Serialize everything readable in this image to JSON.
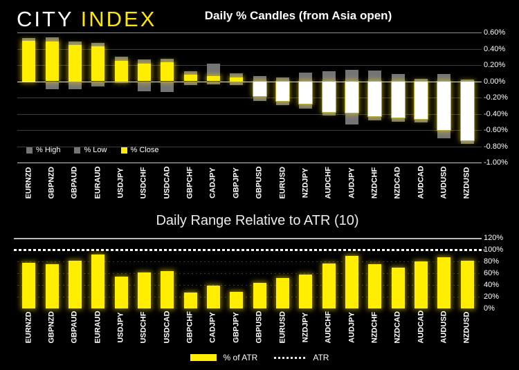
{
  "logo": {
    "city": "CITY",
    "index": "INDEX"
  },
  "chart_data": [
    {
      "type": "candlestick",
      "title": "Daily % Candles (from Asia open)",
      "categories": [
        "EURNZD",
        "GBPNZD",
        "GBPAUD",
        "EURAUD",
        "USDJPY",
        "USDCHF",
        "USDCAD",
        "GBPCHF",
        "CADJPY",
        "GBPJPY",
        "GBPUSD",
        "EURUSD",
        "NZDJPY",
        "AUDCHF",
        "AUDJPY",
        "NZDCHF",
        "NZDCAD",
        "AUDCAD",
        "AUDUSD",
        "NZDUSD"
      ],
      "series": [
        {
          "name": "% High",
          "values": [
            0.53,
            0.54,
            0.49,
            0.47,
            0.3,
            0.27,
            0.28,
            0.12,
            0.22,
            0.1,
            0.06,
            0.05,
            0.11,
            0.12,
            0.14,
            0.13,
            0.09,
            0.03,
            0.09,
            0.02
          ]
        },
        {
          "name": "% Low",
          "values": [
            0.0,
            -0.1,
            -0.1,
            -0.06,
            -0.01,
            -0.12,
            -0.13,
            -0.05,
            -0.04,
            -0.05,
            -0.24,
            -0.29,
            -0.34,
            -0.42,
            -0.53,
            -0.48,
            -0.5,
            -0.51,
            -0.7,
            -0.77
          ]
        },
        {
          "name": "% Close",
          "values": [
            0.5,
            0.49,
            0.45,
            0.43,
            0.25,
            0.22,
            0.23,
            0.08,
            0.06,
            0.05,
            -0.18,
            -0.24,
            -0.28,
            -0.38,
            -0.39,
            -0.43,
            -0.45,
            -0.46,
            -0.6,
            -0.73
          ]
        }
      ],
      "ylim": [
        -1.0,
        0.6
      ],
      "ytick_values": [
        0.6,
        0.4,
        0.2,
        0.0,
        -0.2,
        -0.4,
        -0.6,
        -0.8,
        -1.0
      ],
      "ytick_labels": [
        "0.60%",
        "0.40%",
        "0.20%",
        "0.00%",
        "-0.20%",
        "-0.40%",
        "-0.60%",
        "-0.80%",
        "-1.00%"
      ],
      "legend_position": "bottom-left-inside",
      "grid": true,
      "colors": {
        "high_low": "#757575",
        "close_up": "#ffee00",
        "close_down": "#ffffff"
      }
    },
    {
      "type": "bar",
      "title": "Daily Range Relative to ATR (10)",
      "categories": [
        "EURNZD",
        "GBPNZD",
        "GBPAUD",
        "EURAUD",
        "USDJPY",
        "USDCHF",
        "USDCAD",
        "GBPCHF",
        "CADJPY",
        "GBPJPY",
        "GBPUSD",
        "EURUSD",
        "NZDJPY",
        "AUDCHF",
        "AUDJPY",
        "NZDCHF",
        "NZDCAD",
        "AUDCAD",
        "AUDUSD",
        "NZDUSD"
      ],
      "series": [
        {
          "name": "% of ATR",
          "values": [
            78,
            75,
            81,
            92,
            54,
            61,
            64,
            27,
            39,
            28,
            43,
            52,
            58,
            76,
            90,
            75,
            69,
            80,
            87,
            81
          ]
        }
      ],
      "reference_line": {
        "name": "ATR",
        "value": 100
      },
      "ylim": [
        0,
        120
      ],
      "ytick_values": [
        120,
        100,
        80,
        60,
        40,
        20,
        0
      ],
      "ytick_labels": [
        "120%",
        "100%",
        "80%",
        "60%",
        "40%",
        "20%",
        "0%"
      ],
      "legend_position": "bottom-center",
      "grid": true,
      "colors": {
        "bar": "#ffee00",
        "atr_line": "#ffffff"
      }
    }
  ]
}
